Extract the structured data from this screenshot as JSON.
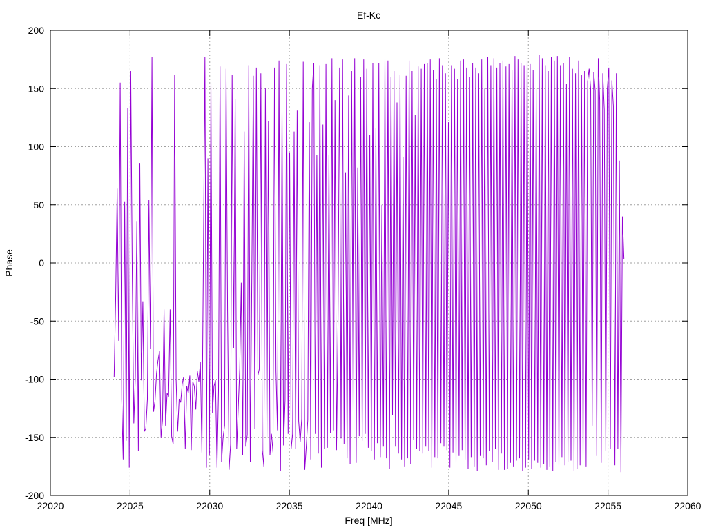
{
  "chart_data": {
    "type": "line",
    "title": "Ef-Kc",
    "xlabel": "Freq [MHz]",
    "ylabel": "Phase",
    "xlim": [
      22020,
      22060
    ],
    "ylim": [
      -200,
      200
    ],
    "xticks": [
      22020,
      22025,
      22030,
      22035,
      22040,
      22045,
      22050,
      22055,
      22060
    ],
    "yticks": [
      -200,
      -150,
      -100,
      -50,
      0,
      50,
      100,
      150,
      200
    ],
    "grid": true,
    "legend": "none",
    "colors": {
      "series": "#9400d3",
      "grid": "#a0a0a0",
      "axis": "#000000"
    },
    "series": [
      {
        "x_start": 22024.0,
        "x_end": 22056.0,
        "x_step": 0.1,
        "values": [
          -98,
          -31,
          64,
          -67,
          155,
          -117,
          -169,
          53,
          -153,
          133,
          -176,
          165,
          -12,
          -138,
          -98,
          36,
          -162,
          86,
          -101,
          -33,
          -145,
          -142,
          -117,
          54,
          -74,
          177,
          -128,
          -119,
          -95,
          -84,
          -76,
          -150,
          -135,
          -40,
          -140,
          -112,
          -115,
          -40,
          -149,
          -156,
          162,
          -101,
          -145,
          -117,
          -120,
          -104,
          -98,
          -160,
          -106,
          -112,
          -97,
          -161,
          -102,
          -106,
          -126,
          -93,
          -102,
          -85,
          -163,
          5,
          177,
          -176,
          90,
          -165,
          156,
          -129,
          -106,
          -101,
          -176,
          -110,
          169,
          -171,
          -150,
          -140,
          167,
          -42,
          -178,
          -156,
          162,
          -73,
          141,
          -160,
          -126,
          -91,
          -17,
          -165,
          113,
          -158,
          -148,
          170,
          -171,
          -13,
          161,
          -143,
          168,
          -97,
          -91,
          163,
          -161,
          -175,
          150,
          -150,
          122,
          -165,
          -147,
          -163,
          168,
          -93,
          -144,
          174,
          -179,
          130,
          -157,
          -118,
          171,
          -147,
          95,
          -160,
          -147,
          113,
          -160,
          131,
          -136,
          -154,
          -134,
          173,
          -178,
          -158,
          -135,
          121,
          -169,
          150,
          172,
          -147,
          93,
          -164,
          170,
          -176,
          119,
          -160,
          171,
          -159,
          93,
          -146,
          176,
          -144,
          140,
          -161,
          -50,
          168,
          -151,
          175,
          -156,
          78,
          -168,
          144,
          -173,
          165,
          -128,
          176,
          -172,
          82,
          -149,
          160,
          -153,
          175,
          -147,
          167,
          -159,
          110,
          -162,
          172,
          -169,
          116,
          -155,
          172,
          -167,
          50,
          -158,
          176,
          -168,
          174,
          -177,
          160,
          -131,
          165,
          -158,
          138,
          -164,
          162,
          -169,
          91,
          -175,
          161,
          -168,
          174,
          -173,
          165,
          -152,
          127,
          -160,
          169,
          -162,
          167,
          -164,
          171,
          -158,
          172,
          -162,
          175,
          -176,
          166,
          -167,
          158,
          -168,
          176,
          -155,
          170,
          -158,
          163,
          -161,
          121,
          -176,
          170,
          -163,
          167,
          -172,
          158,
          -166,
          174,
          -161,
          175,
          -169,
          168,
          -177,
          160,
          -167,
          172,
          -175,
          168,
          -179,
          163,
          -166,
          175,
          -168,
          150,
          -174,
          177,
          -162,
          170,
          -171,
          176,
          -160,
          168,
          -178,
          172,
          -164,
          174,
          -178,
          169,
          -177,
          171,
          -172,
          166,
          -175,
          178,
          -170,
          175,
          -168,
          172,
          -179,
          170,
          -176,
          176,
          -169,
          171,
          -177,
          166,
          -170,
          150,
          -172,
          179,
          -176,
          176,
          -173,
          170,
          -178,
          165,
          -175,
          177,
          -179,
          174,
          -171,
          178,
          -176,
          170,
          -167,
          172,
          -174,
          154,
          -171,
          177,
          -170,
          167,
          -179,
          163,
          -177,
          174,
          -174,
          162,
          -169,
          165,
          -175,
          156,
          167,
          150,
          -140,
          164,
          148,
          -166,
          176,
          140,
          -172,
          163,
          132,
          -162,
          150,
          168,
          -160,
          157,
          135,
          -174,
          163,
          -160,
          88,
          -180,
          40,
          3
        ]
      }
    ]
  }
}
